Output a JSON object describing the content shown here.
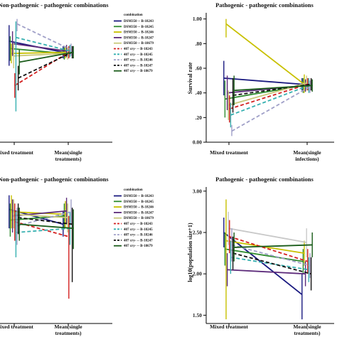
{
  "chart_data": [
    {
      "type": "line",
      "title": "Non-pathogenic - pathogenic combinations",
      "categories": [
        "Mixed treatment",
        "Mean(single\ntreatments)"
      ],
      "xlabel": "",
      "ylabel": "",
      "ylim": [
        0,
        1.05
      ],
      "yticks": [],
      "error_bars": true,
      "legend": {
        "title": "combination",
        "placement": "top-right",
        "entries": [
          "DSM350 -- B-18243",
          "DSM350 -- B-18245",
          "DSM350 -- B-18246",
          "DSM350 -- B-18247",
          "DSM350 -- B-18679",
          "407 cry- -- B-18243",
          "407 cry- -- B-18245",
          "407 cry- -- B-18246",
          "407 cry- -- B-18247",
          "407 cry- -- B-18679"
        ]
      },
      "series": [
        {
          "name": "DSM350 -- B-18243",
          "values": [
            0.82,
            0.73
          ],
          "err_low": [
            0.62,
            0.68
          ],
          "err_high": [
            0.95,
            0.78
          ]
        },
        {
          "name": "DSM350 -- B-18245",
          "values": [
            0.76,
            0.72
          ],
          "err_low": [
            0.66,
            0.67
          ],
          "err_high": [
            0.86,
            0.77
          ]
        },
        {
          "name": "DSM350 -- B-18246",
          "values": [
            0.72,
            0.73
          ],
          "err_low": [
            0.64,
            0.68
          ],
          "err_high": [
            0.8,
            0.78
          ]
        },
        {
          "name": "DSM350 -- B-18247",
          "values": [
            0.8,
            0.74
          ],
          "err_low": [
            0.7,
            0.69
          ],
          "err_high": [
            0.9,
            0.79
          ]
        },
        {
          "name": "DSM350 -- B-18679",
          "values": [
            0.7,
            0.72
          ],
          "err_low": [
            0.6,
            0.67
          ],
          "err_high": [
            0.8,
            0.77
          ]
        },
        {
          "name": "407 cry- -- B-18243",
          "values": [
            0.46,
            0.73
          ],
          "err_low": [
            0.36,
            0.68
          ],
          "err_high": [
            0.56,
            0.78
          ]
        },
        {
          "name": "407 cry- -- B-18245",
          "values": [
            0.85,
            0.74
          ],
          "err_low": [
            0.25,
            0.69
          ],
          "err_high": [
            0.98,
            0.79
          ]
        },
        {
          "name": "407 cry- -- B-18246",
          "values": [
            0.96,
            0.75
          ],
          "err_low": [
            0.9,
            0.7
          ],
          "err_high": [
            1.0,
            0.8
          ]
        },
        {
          "name": "407 cry- -- B-18247",
          "values": [
            0.52,
            0.73
          ],
          "err_low": [
            0.42,
            0.68
          ],
          "err_high": [
            0.62,
            0.78
          ]
        },
        {
          "name": "407 cry- -- B-18679",
          "values": [
            0.65,
            0.73
          ],
          "err_low": [
            0.55,
            0.68
          ],
          "err_high": [
            0.75,
            0.78
          ]
        }
      ]
    },
    {
      "type": "line",
      "title": "Pathogenic - pathogenic combinations",
      "categories": [
        "Mixed treatment",
        "Mean(single\ninfections)"
      ],
      "xlabel": "",
      "ylabel": "Survival rate",
      "ylim": [
        0,
        1.05
      ],
      "yticks": [
        "0.00",
        ".20",
        ".40",
        ".60",
        ".80",
        "1.00"
      ],
      "tick_values": [
        0,
        0.2,
        0.4,
        0.6,
        0.8,
        1.0
      ],
      "error_bars": true,
      "series": [
        {
          "name": "",
          "color": "#1a1a80",
          "values": [
            0.52,
            0.47
          ],
          "err_low": [
            0.38,
            0.42
          ],
          "err_high": [
            0.66,
            0.52
          ]
        },
        {
          "name": "",
          "color": "#2e8b2e",
          "values": [
            0.35,
            0.46
          ],
          "err_low": [
            0.2,
            0.4
          ],
          "err_high": [
            0.5,
            0.52
          ]
        },
        {
          "name": "",
          "color": "#c8c000",
          "values": [
            0.96,
            0.47
          ],
          "err_low": [
            0.85,
            0.4
          ],
          "err_high": [
            1.0,
            0.55
          ]
        },
        {
          "name": "",
          "color": "#5c2a7a",
          "values": [
            0.4,
            0.46
          ],
          "err_low": [
            0.26,
            0.41
          ],
          "err_high": [
            0.54,
            0.51
          ]
        },
        {
          "name": "",
          "color": "#c8c87a",
          "values": [
            0.3,
            0.48
          ],
          "err_low": [
            0.18,
            0.42
          ],
          "err_high": [
            0.42,
            0.54
          ]
        },
        {
          "name": "",
          "color": "#d42020",
          "values": [
            0.27,
            0.47
          ],
          "err_low": [
            0.16,
            0.42
          ],
          "err_high": [
            0.38,
            0.52
          ]
        },
        {
          "name": "",
          "color": "#36b0b0",
          "values": [
            0.22,
            0.46
          ],
          "err_low": [
            0.12,
            0.4
          ],
          "err_high": [
            0.32,
            0.52
          ]
        },
        {
          "name": "",
          "color": "#a0a0c8",
          "values": [
            0.09,
            0.45
          ],
          "err_low": [
            0.05,
            0.4
          ],
          "err_high": [
            0.14,
            0.5
          ]
        },
        {
          "name": "",
          "color": "#111111",
          "values": [
            0.38,
            0.47
          ],
          "err_low": [
            0.24,
            0.42
          ],
          "err_high": [
            0.52,
            0.52
          ]
        },
        {
          "name": "",
          "color": "#1a5c1a",
          "values": [
            0.42,
            0.46
          ],
          "err_low": [
            0.3,
            0.41
          ],
          "err_high": [
            0.54,
            0.51
          ]
        }
      ]
    },
    {
      "type": "line",
      "title": "Non-pathogenic - pathogenic combinations",
      "categories": [
        "Mixed treatment",
        "Mean(single\ntreatments)"
      ],
      "xlabel": "",
      "ylabel": "",
      "ylim": [
        1.4,
        3.05
      ],
      "yticks": [],
      "error_bars": true,
      "legend": {
        "title": "combination",
        "placement": "top-right",
        "entries": [
          "DSM350 -- B-18243",
          "DSM350 -- B-18245",
          "DSM350 -- B-18246",
          "DSM350 -- B-18247",
          "DSM350 -- B-18679",
          "407 cry- -- B-18243",
          "407 cry- -- B-18245",
          "407 cry- -- B-18246",
          "407 cry- -- B-18247",
          "407 cry- -- B-18679"
        ]
      },
      "series": [
        {
          "name": "DSM350 -- B-18243",
          "values": [
            2.78,
            2.6
          ],
          "err_low": [
            2.55,
            2.45
          ],
          "err_high": [
            2.95,
            2.75
          ]
        },
        {
          "name": "DSM350 -- B-18245",
          "values": [
            2.65,
            2.7
          ],
          "err_low": [
            2.45,
            2.55
          ],
          "err_high": [
            2.85,
            2.85
          ]
        },
        {
          "name": "DSM350 -- B-18246",
          "values": [
            2.75,
            2.72
          ],
          "err_low": [
            2.55,
            2.55
          ],
          "err_high": [
            2.95,
            2.88
          ]
        },
        {
          "name": "DSM350 -- B-18247",
          "values": [
            2.7,
            2.76
          ],
          "err_low": [
            2.5,
            2.6
          ],
          "err_high": [
            2.9,
            2.92
          ]
        },
        {
          "name": "DSM350 -- B-18679",
          "values": [
            2.72,
            2.68
          ],
          "err_low": [
            2.55,
            2.5
          ],
          "err_high": [
            2.9,
            2.85
          ]
        },
        {
          "name": "407 cry- -- B-18243",
          "values": [
            2.63,
            2.45
          ],
          "err_low": [
            2.4,
            1.7
          ],
          "err_high": [
            2.85,
            2.7
          ]
        },
        {
          "name": "407 cry- -- B-18245",
          "values": [
            2.5,
            2.55
          ],
          "err_low": [
            2.2,
            2.35
          ],
          "err_high": [
            2.75,
            2.75
          ]
        },
        {
          "name": "407 cry- -- B-18246",
          "values": [
            2.58,
            2.75
          ],
          "err_low": [
            2.35,
            2.6
          ],
          "err_high": [
            2.8,
            2.9
          ]
        },
        {
          "name": "407 cry- -- B-18247",
          "values": [
            2.68,
            2.6
          ],
          "err_low": [
            2.48,
            1.9
          ],
          "err_high": [
            2.85,
            2.8
          ]
        },
        {
          "name": "407 cry- -- B-18679",
          "values": [
            2.6,
            2.55
          ],
          "err_low": [
            2.4,
            2.3
          ],
          "err_high": [
            2.8,
            2.78
          ]
        }
      ]
    },
    {
      "type": "line",
      "title": "Pathogenic - pathogenic combinations",
      "categories": [
        "Mixed treatment",
        "Mean(single\ntreatments)"
      ],
      "xlabel": "",
      "ylabel": "log10(population size+1)",
      "ylim": [
        1.4,
        3.05
      ],
      "yticks": [
        "1.50",
        "2.00",
        "2.50",
        "3.00"
      ],
      "tick_values": [
        1.5,
        2.0,
        2.5,
        3.0
      ],
      "error_bars": true,
      "series": [
        {
          "name": "",
          "color": "#1a1a80",
          "values": [
            2.5,
            1.75
          ],
          "err_low": [
            2.32,
            1.45
          ],
          "err_high": [
            2.68,
            2.0
          ]
        },
        {
          "name": "",
          "color": "#2e8b2e",
          "values": [
            2.3,
            2.15
          ],
          "err_low": [
            2.1,
            2.0
          ],
          "err_high": [
            2.5,
            2.3
          ]
        },
        {
          "name": "",
          "color": "#c8c000",
          "values": [
            2.4,
            2.25
          ],
          "err_low": [
            1.45,
            2.1
          ],
          "err_high": [
            2.9,
            2.4
          ]
        },
        {
          "name": "",
          "color": "#5c2a7a",
          "values": [
            2.05,
            2.0
          ],
          "err_low": [
            1.85,
            1.85
          ],
          "err_high": [
            2.25,
            2.15
          ]
        },
        {
          "name": "",
          "color": "#c8c8c8",
          "values": [
            2.55,
            2.38
          ],
          "err_low": [
            2.35,
            2.2
          ],
          "err_high": [
            2.75,
            2.55
          ]
        },
        {
          "name": "",
          "color": "#d42020",
          "values": [
            2.45,
            2.15
          ],
          "err_low": [
            2.25,
            2.0
          ],
          "err_high": [
            2.65,
            2.3
          ]
        },
        {
          "name": "",
          "color": "#36b0b0",
          "values": [
            2.2,
            2.05
          ],
          "err_low": [
            2.0,
            1.9
          ],
          "err_high": [
            2.4,
            2.2
          ]
        },
        {
          "name": "",
          "color": "#a0a0c8",
          "values": [
            2.35,
            2.1
          ],
          "err_low": [
            2.15,
            1.95
          ],
          "err_high": [
            2.55,
            2.25
          ]
        },
        {
          "name": "",
          "color": "#111111",
          "values": [
            2.25,
            2.0
          ],
          "err_low": [
            2.05,
            1.8
          ],
          "err_high": [
            2.45,
            2.2
          ]
        },
        {
          "name": "",
          "color": "#1a5c1a",
          "values": [
            2.32,
            2.35
          ],
          "err_low": [
            2.15,
            2.2
          ],
          "err_high": [
            2.5,
            2.5
          ]
        }
      ]
    }
  ],
  "series_colors": [
    "#1a1a80",
    "#2e8b2e",
    "#c8c000",
    "#5c2a7a",
    "#c8c87a",
    "#d42020",
    "#36b0b0",
    "#a0a0c8",
    "#111111",
    "#1a5c1a"
  ],
  "series_dashed": [
    false,
    false,
    false,
    false,
    false,
    true,
    true,
    true,
    true,
    false
  ]
}
